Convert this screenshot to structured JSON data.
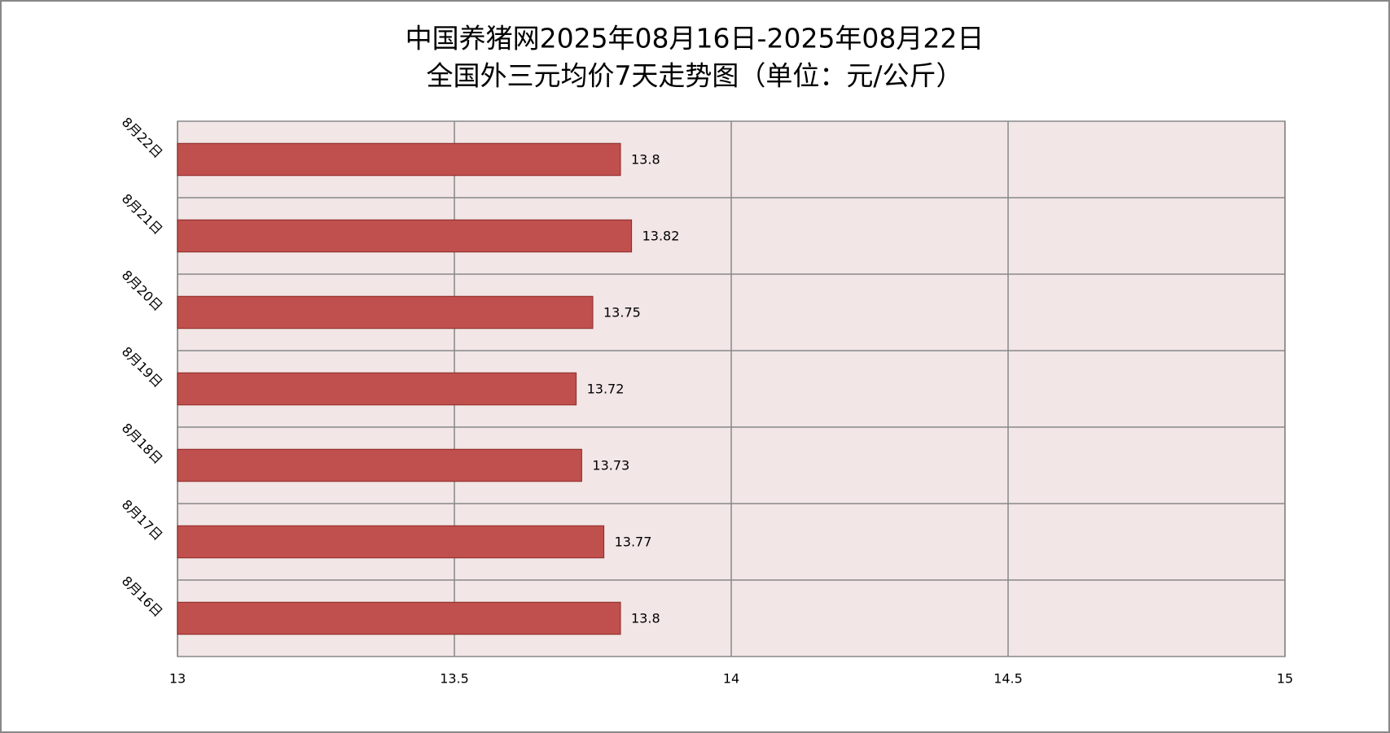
{
  "chart_data": {
    "type": "bar",
    "orientation": "horizontal",
    "title": "中国养猪网2025年08月16日-2025年08月22日",
    "subtitle": "全国外三元均价7天走势图（单位：元/公斤）",
    "categories": [
      "8月22日",
      "8月21日",
      "8月20日",
      "8月19日",
      "8月18日",
      "8月17日",
      "8月16日"
    ],
    "values": [
      13.8,
      13.82,
      13.75,
      13.72,
      13.73,
      13.77,
      13.8
    ],
    "color": "#c0504d",
    "xlim": [
      13,
      15
    ],
    "xticks": [
      13,
      13.5,
      14,
      14.5,
      15
    ],
    "grid": true
  }
}
